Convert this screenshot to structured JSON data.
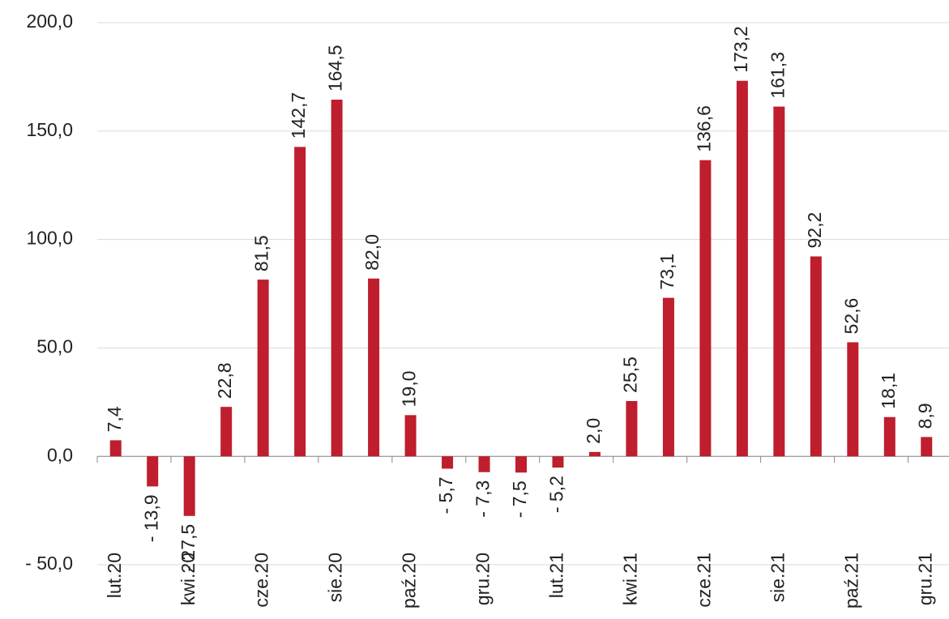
{
  "chart_data": {
    "type": "bar",
    "categories": [
      "lut.20",
      null,
      "kwi.20",
      null,
      "cze.20",
      null,
      "sie.20",
      null,
      "paź.20",
      null,
      "gru.20",
      null,
      "lut.21",
      null,
      "kwi.21",
      null,
      "cze.21",
      null,
      "sie.21",
      null,
      "paź.21",
      null,
      "gru.21"
    ],
    "values": [
      7.4,
      -13.9,
      -27.5,
      22.8,
      81.5,
      142.7,
      164.5,
      82.0,
      19.0,
      -5.7,
      -7.3,
      -7.5,
      -5.2,
      2.0,
      25.5,
      73.1,
      136.6,
      173.2,
      161.3,
      92.2,
      52.6,
      18.1,
      8.9
    ],
    "value_labels": [
      "7,4",
      "- 13,9",
      "- 27,5",
      "22,8",
      "81,5",
      "142,7",
      "164,5",
      "82,0",
      "19,0",
      "- 5,7",
      "- 7,3",
      "- 7,5",
      "- 5,2",
      "2,0",
      "25,5",
      "73,1",
      "136,6",
      "173,2",
      "161,3",
      "92,2",
      "52,6",
      "18,1",
      "8,9"
    ],
    "color": "#be1e2d",
    "ylim": [
      -50,
      200
    ],
    "yticks": [
      {
        "value": -50,
        "label": "- 50,0"
      },
      {
        "value": 0,
        "label": "0,0"
      },
      {
        "value": 50,
        "label": "50,0"
      },
      {
        "value": 100,
        "label": "100,0"
      },
      {
        "value": 150,
        "label": "150,0"
      },
      {
        "value": 200,
        "label": "200,0"
      }
    ],
    "grid": true
  }
}
